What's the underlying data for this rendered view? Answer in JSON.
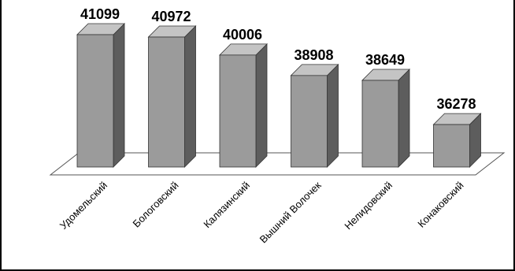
{
  "chart_data": {
    "type": "bar",
    "style": "3d-column",
    "categories": [
      "Удомельский",
      "Бологовский",
      "Калязинский",
      "Вышний Волочек",
      "Нелидовский",
      "Конаковский"
    ],
    "values": [
      41099,
      40972,
      40006,
      38908,
      38649,
      36278
    ],
    "title": "",
    "xlabel": "",
    "ylabel": "",
    "grid": false,
    "legend": "none",
    "colors": {
      "front": "#9b9b9b",
      "side": "#5d5d5d",
      "top": "#c4c4c4",
      "edge": "#333333",
      "floor": "#ffffff"
    }
  }
}
